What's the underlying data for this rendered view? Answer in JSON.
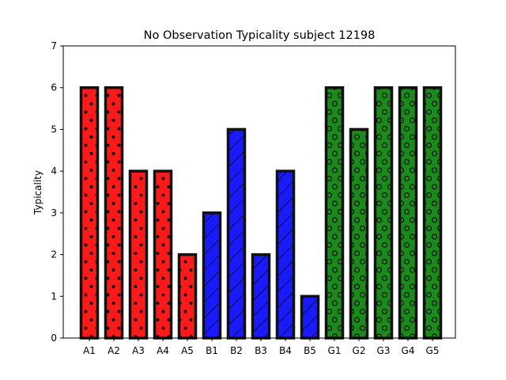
{
  "chart_data": {
    "type": "bar",
    "title": "No Observation Typicality subject 12198",
    "xlabel": "",
    "ylabel": "Typicality",
    "ylim": [
      0,
      7
    ],
    "yticks": [
      0,
      1,
      2,
      3,
      4,
      5,
      6,
      7
    ],
    "categories": [
      "A1",
      "A2",
      "A3",
      "A4",
      "A5",
      "B1",
      "B2",
      "B3",
      "B4",
      "B5",
      "G1",
      "G2",
      "G3",
      "G4",
      "G5"
    ],
    "values": [
      6,
      6,
      4,
      4,
      2,
      3,
      5,
      2,
      4,
      1,
      6,
      5,
      6,
      6,
      6
    ],
    "bar_colors": [
      "#ff1a1a",
      "#ff1a1a",
      "#ff1a1a",
      "#ff1a1a",
      "#ff1a1a",
      "#1a1aff",
      "#1a1aff",
      "#1a1aff",
      "#1a1aff",
      "#1a1aff",
      "#1a8a1a",
      "#1a8a1a",
      "#1a8a1a",
      "#1a8a1a",
      "#1a8a1a"
    ],
    "hatches": [
      "dots",
      "dots",
      "dots",
      "dots",
      "dots",
      "diagonal",
      "diagonal",
      "diagonal",
      "diagonal",
      "diagonal",
      "circles",
      "circles",
      "circles",
      "circles",
      "circles"
    ],
    "edge_color": "#111111",
    "grid": false,
    "legend": "none"
  }
}
